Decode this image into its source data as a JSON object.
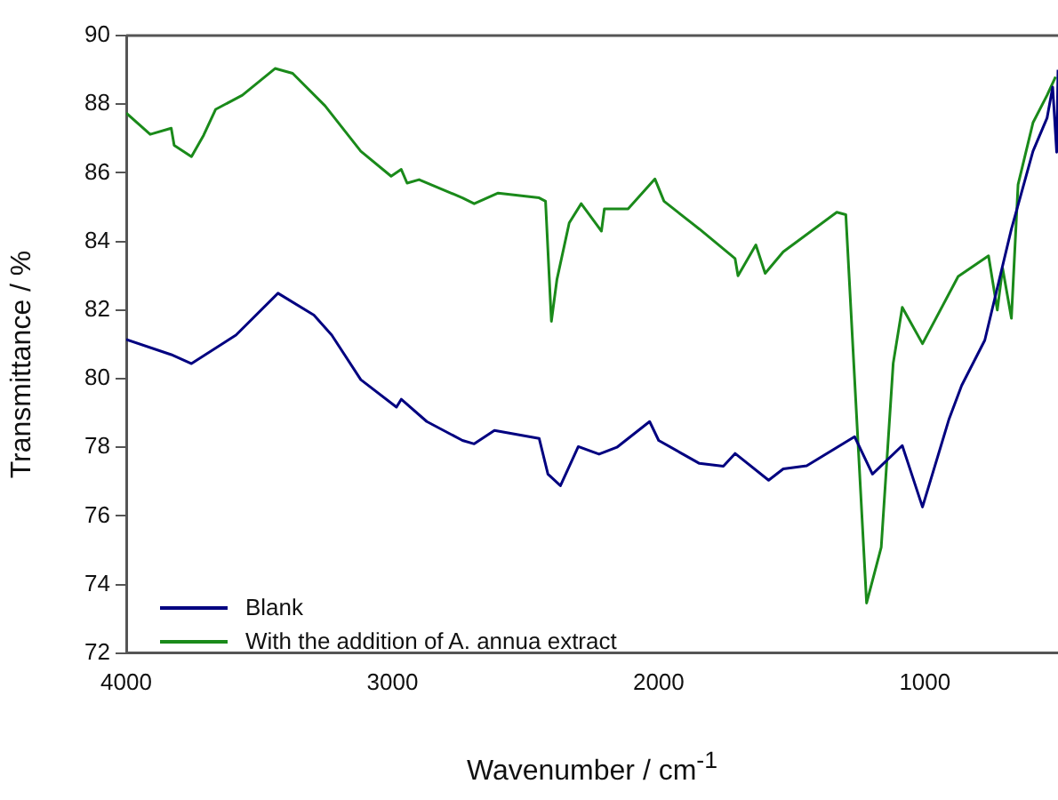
{
  "chart_data": {
    "type": "line",
    "xlabel": "Wavenumber / cm$^{-1}$",
    "ylabel": "Transmittance / %",
    "xlim": [
      4000,
      500
    ],
    "xticks": [
      4000,
      3000,
      2000,
      1000
    ],
    "ylim": [
      72,
      90
    ],
    "yticks": [
      72,
      74,
      76,
      78,
      80,
      82,
      84,
      86,
      88,
      90
    ],
    "grid": false,
    "legend": "bottom left",
    "marker": "none",
    "line_style": "solid",
    "series": [
      {
        "name": "Blank",
        "color": "#000080",
        "x": [
          4000,
          3831,
          3755,
          3588,
          3430,
          3295,
          3228,
          3119,
          2985,
          2967,
          2871,
          2737,
          2693,
          2617,
          2449,
          2416,
          2369,
          2302,
          2224,
          2157,
          2034,
          2000,
          1847,
          1757,
          1713,
          1587,
          1532,
          1444,
          1264,
          1197,
          1085,
          1009,
          909,
          862,
          775,
          675,
          594,
          541,
          520,
          505,
          500
        ],
        "values": [
          81.14,
          80.7,
          80.44,
          81.27,
          82.49,
          81.85,
          81.27,
          79.97,
          79.17,
          79.4,
          78.75,
          78.2,
          78.1,
          78.49,
          78.26,
          77.22,
          76.88,
          78.02,
          77.8,
          78.0,
          78.75,
          78.2,
          77.53,
          77.45,
          77.82,
          77.04,
          77.37,
          77.46,
          78.31,
          77.22,
          78.05,
          76.26,
          78.83,
          79.8,
          81.12,
          84.36,
          86.63,
          87.6,
          88.5,
          86.6,
          89.0
        ]
      },
      {
        "name": "With the addition of A. annua extract",
        "color": "#1a8a1a",
        "x": [
          4000,
          3910,
          3831,
          3820,
          3755,
          3709,
          3664,
          3564,
          3441,
          3375,
          3253,
          3119,
          3005,
          2967,
          2945,
          2900,
          2737,
          2693,
          2603,
          2449,
          2425,
          2403,
          2382,
          2336,
          2291,
          2215,
          2204,
          2115,
          2014,
          1980,
          1847,
          1713,
          1702,
          1635,
          1600,
          1532,
          1331,
          1297,
          1219,
          1164,
          1119,
          1085,
          1009,
          875,
          761,
          728,
          708,
          675,
          650,
          594,
          541,
          509
        ],
        "values": [
          87.74,
          87.12,
          87.3,
          86.8,
          86.47,
          87.1,
          87.85,
          88.26,
          89.04,
          88.9,
          87.95,
          86.63,
          85.9,
          86.1,
          85.7,
          85.8,
          85.27,
          85.1,
          85.41,
          85.27,
          85.17,
          81.67,
          82.9,
          84.54,
          85.1,
          84.3,
          84.95,
          84.95,
          85.82,
          85.17,
          84.36,
          83.5,
          83.0,
          83.9,
          83.07,
          83.7,
          84.85,
          84.78,
          73.46,
          75.09,
          80.45,
          82.08,
          81.02,
          82.98,
          83.58,
          82.0,
          83.22,
          81.76,
          85.66,
          87.46,
          88.26,
          88.8
        ]
      }
    ]
  }
}
